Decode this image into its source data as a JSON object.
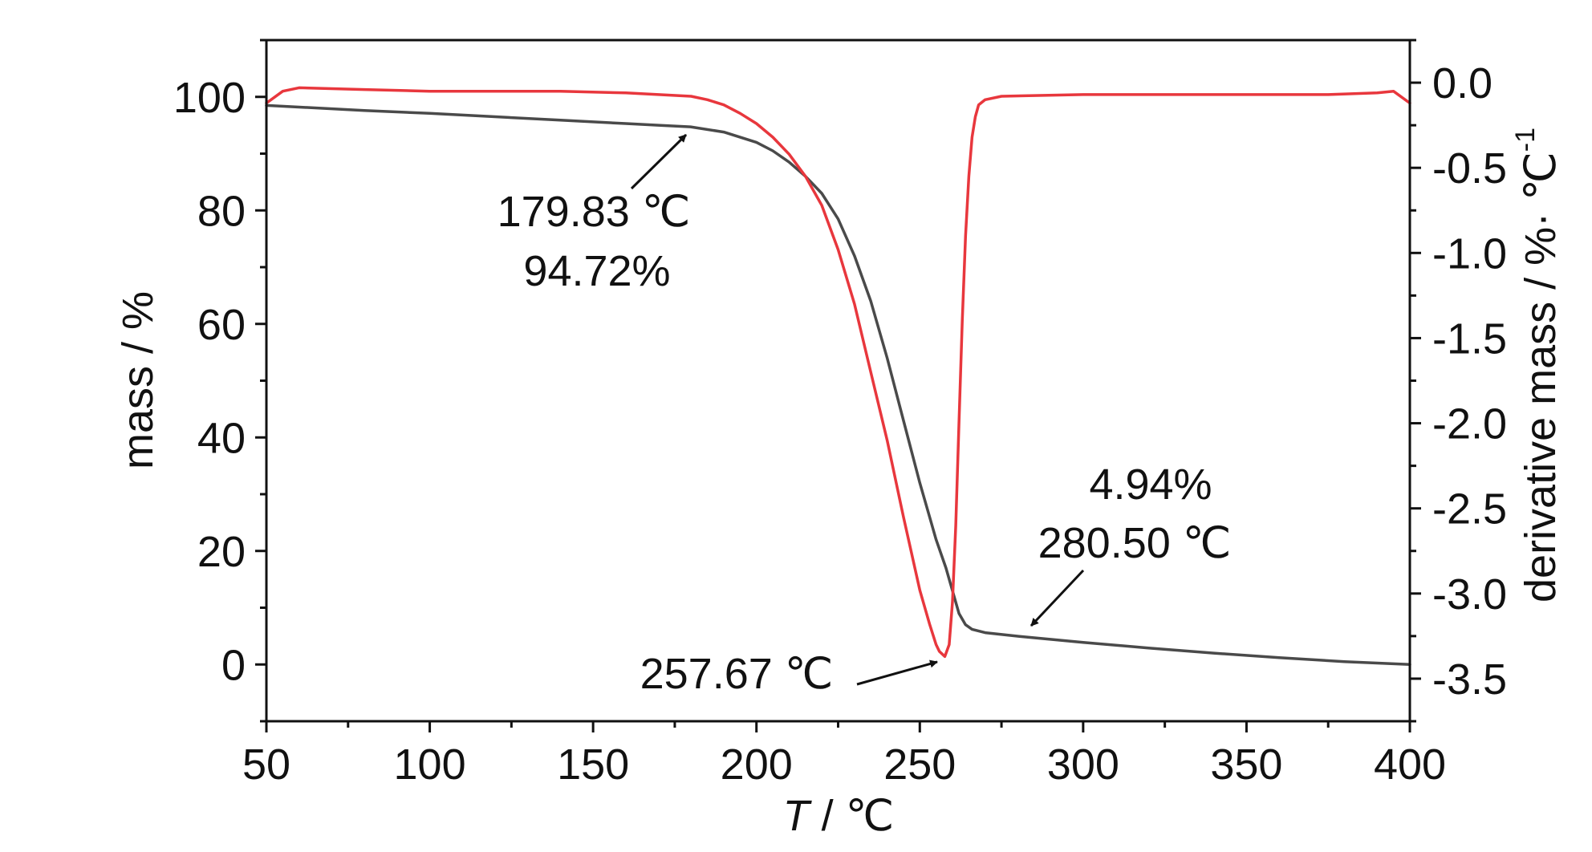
{
  "chart_data": {
    "type": "line",
    "xlabel": {
      "italic": "T",
      "rest": " / ℃"
    },
    "ylabel_left": "mass / %",
    "ylabel_right": {
      "main": "derivative mass / %· ℃",
      "sup": "-1"
    },
    "xlim": [
      50,
      400
    ],
    "ylim_left": [
      -10,
      110
    ],
    "ylim_right": [
      -3.75,
      0.25
    ],
    "x_ticks": [
      50,
      100,
      150,
      200,
      250,
      300,
      350,
      400
    ],
    "x_tick_labels": [
      "50",
      "100",
      "150",
      "200",
      "250",
      "300",
      "350",
      "400"
    ],
    "y_left_ticks": [
      0,
      20,
      40,
      60,
      80,
      100
    ],
    "y_left_tick_labels": [
      "0",
      "20",
      "40",
      "60",
      "80",
      "100"
    ],
    "y_right_ticks": [
      0.0,
      -0.5,
      -1.0,
      -1.5,
      -2.0,
      -2.5,
      -3.0,
      -3.5
    ],
    "y_right_tick_labels": [
      "0.0",
      "-0.5",
      "-1.0",
      "-1.5",
      "-2.0",
      "-2.5",
      "-3.0",
      "-3.5"
    ],
    "grid": false,
    "series": [
      {
        "axis": "left",
        "color": "#4a4a4a",
        "x": [
          50,
          60,
          80,
          100,
          120,
          140,
          160,
          170,
          179.83,
          190,
          200,
          205,
          210,
          215,
          220,
          225,
          230,
          235,
          240,
          245,
          250,
          253,
          255,
          258,
          260,
          262,
          264,
          266,
          270,
          280.5,
          300,
          320,
          340,
          360,
          380,
          400
        ],
        "y": [
          98.5,
          98.2,
          97.6,
          97.1,
          96.5,
          95.9,
          95.3,
          95.0,
          94.72,
          93.8,
          92.0,
          90.5,
          88.5,
          86.0,
          83.0,
          78.5,
          72.0,
          64.0,
          54.0,
          43.0,
          32.0,
          26.0,
          22.0,
          17.0,
          13.0,
          9.0,
          7.0,
          6.2,
          5.6,
          4.94,
          3.9,
          2.9,
          2.0,
          1.2,
          0.5,
          0.0
        ]
      },
      {
        "axis": "right",
        "color": "#e8373d",
        "x": [
          50,
          55,
          60,
          80,
          100,
          120,
          140,
          160,
          170,
          180,
          185,
          190,
          195,
          200,
          205,
          210,
          215,
          220,
          225,
          230,
          235,
          240,
          245,
          250,
          253,
          255,
          256,
          257.67,
          259,
          260,
          261,
          262,
          263,
          264,
          265,
          266,
          267,
          268,
          270,
          275,
          300,
          325,
          350,
          375,
          390,
          395,
          400
        ],
        "y": [
          -0.12,
          -0.05,
          -0.03,
          -0.04,
          -0.05,
          -0.05,
          -0.05,
          -0.06,
          -0.07,
          -0.08,
          -0.1,
          -0.13,
          -0.18,
          -0.24,
          -0.32,
          -0.42,
          -0.55,
          -0.72,
          -0.98,
          -1.3,
          -1.7,
          -2.1,
          -2.55,
          -2.98,
          -3.18,
          -3.3,
          -3.34,
          -3.37,
          -3.3,
          -3.05,
          -2.6,
          -2.0,
          -1.4,
          -0.9,
          -0.55,
          -0.32,
          -0.2,
          -0.13,
          -0.1,
          -0.08,
          -0.07,
          -0.07,
          -0.07,
          -0.07,
          -0.06,
          -0.05,
          -0.12
        ]
      }
    ],
    "annotations": [
      {
        "lines": [
          "179.83 ℃",
          "94.72%"
        ]
      },
      {
        "lines": [
          "257.67 ℃"
        ]
      },
      {
        "lines": [
          "4.94%",
          "280.50 ℃"
        ]
      }
    ]
  }
}
